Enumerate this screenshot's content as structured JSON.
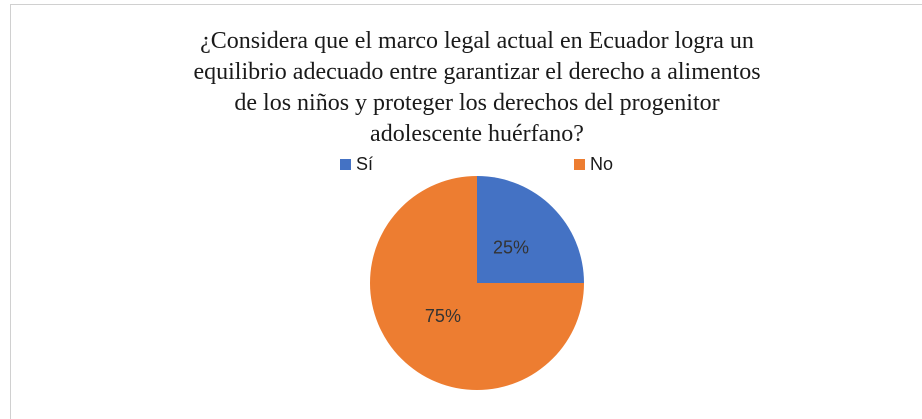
{
  "chart_data": {
    "type": "pie",
    "title": [
      "¿Considera que el marco legal actual en Ecuador logra un",
      "equilibrio adecuado entre garantizar el derecho a alimentos",
      "de los niños y proteger los derechos del progenitor",
      "adolescente huérfano?"
    ],
    "categories": [
      "Sí",
      "No"
    ],
    "values": [
      25,
      75
    ],
    "value_labels": [
      "25%",
      "75%"
    ],
    "colors": [
      "#4472c4",
      "#ed7d31"
    ],
    "legend": "top"
  }
}
